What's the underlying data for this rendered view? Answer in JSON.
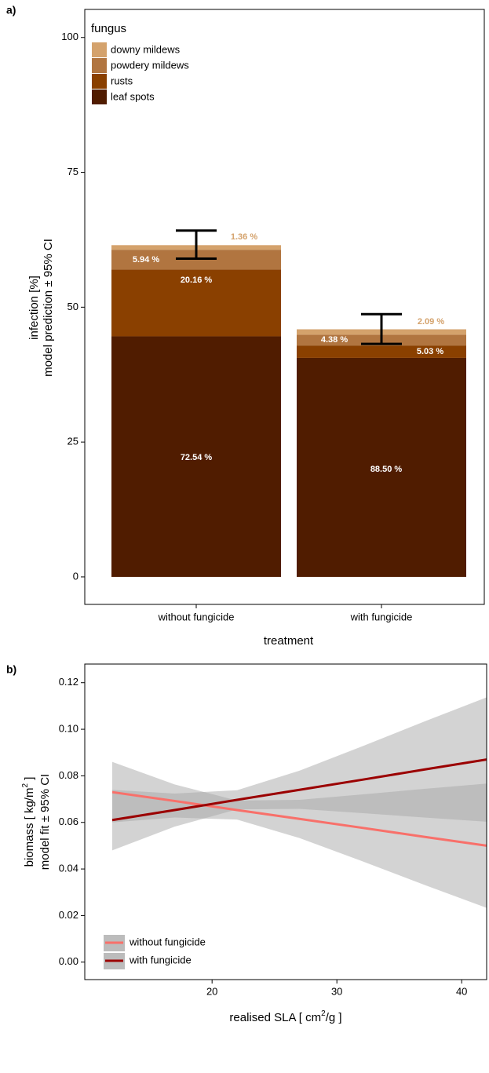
{
  "chart_data": [
    {
      "type": "bar",
      "stacked": true,
      "panel_label": "a)",
      "categories": [
        "without fungicide",
        "with fungicide"
      ],
      "xlabel": "treatment",
      "ylabel": [
        "infection [%]",
        "model prediction ± 95% CI"
      ],
      "ylim": [
        -5.1,
        105.2
      ],
      "yticks": [
        0,
        25,
        50,
        75,
        100
      ],
      "legend_title": "fungus",
      "legend": "top-left",
      "series": [
        {
          "name": "leaf spots",
          "color": "#501c00",
          "values": [
            44.6,
            40.6
          ],
          "share_labels": [
            "72.54 %",
            "88.50 %"
          ]
        },
        {
          "name": "rusts",
          "color": "#8a4000",
          "values": [
            12.4,
            2.3
          ],
          "share_labels": [
            "20.16 %",
            "5.03 %"
          ]
        },
        {
          "name": "powdery mildews",
          "color": "#b17540",
          "values": [
            3.65,
            2.0
          ],
          "share_labels": [
            "5.94 %",
            "4.38 %"
          ]
        },
        {
          "name": "downy mildews",
          "color": "#d4a26c",
          "values": [
            0.85,
            1.0
          ],
          "share_labels": [
            "1.36 %",
            "2.09 %"
          ]
        }
      ],
      "error_low": [
        59.0,
        43.2
      ],
      "error_high": [
        64.2,
        48.7
      ]
    },
    {
      "type": "line",
      "panel_label": "b)",
      "x": [
        12,
        17,
        22,
        27,
        32,
        37,
        42
      ],
      "xlabel": [
        "realised SLA [ cm",
        "2",
        "/g ]"
      ],
      "ylabel": [
        "biomass [ kg/m",
        "2",
        " ]",
        "model fit ± 95% CI"
      ],
      "xlim": [
        9.8,
        42
      ],
      "ylim": [
        -0.0075,
        0.128
      ],
      "xticks": [
        20,
        30,
        40
      ],
      "yticks": [
        {
          "value": 0,
          "label": "0.00"
        },
        {
          "value": 0.02,
          "label": "0.02"
        },
        {
          "value": 0.04,
          "label": "0.04"
        },
        {
          "value": 0.06,
          "label": "0.06"
        },
        {
          "value": 0.08,
          "label": "0.08"
        },
        {
          "value": 0.1,
          "label": "0.10"
        },
        {
          "value": 0.12,
          "label": "0.12"
        }
      ],
      "legend": "bottom-left",
      "series": [
        {
          "name": "without fungicide",
          "color": "#f8706a",
          "values": [
            0.073,
            0.0692,
            0.0653,
            0.0615,
            0.0577,
            0.0538,
            0.05
          ],
          "lower": [
            0.06,
            0.0621,
            0.0612,
            0.0533,
            0.0434,
            0.0332,
            0.0233
          ],
          "upper": [
            0.086,
            0.0763,
            0.0694,
            0.0697,
            0.072,
            0.0744,
            0.0767
          ]
        },
        {
          "name": "with fungicide",
          "color": "#9b0000",
          "values": [
            0.061,
            0.0653,
            0.0697,
            0.074,
            0.0783,
            0.0827,
            0.087
          ],
          "lower": [
            0.048,
            0.0582,
            0.0656,
            0.0658,
            0.064,
            0.0621,
            0.0603
          ],
          "upper": [
            0.074,
            0.0724,
            0.0738,
            0.0822,
            0.0926,
            0.1033,
            0.1137
          ]
        }
      ]
    }
  ]
}
